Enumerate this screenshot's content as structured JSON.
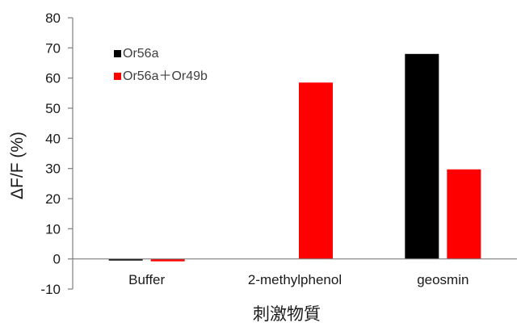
{
  "chart_data": {
    "type": "bar",
    "title": "",
    "xlabel": "刺激物質",
    "ylabel": "ΔF/F (%)",
    "ylim": [
      -10,
      80
    ],
    "yticks": [
      -10,
      0,
      10,
      20,
      30,
      40,
      50,
      60,
      70,
      80
    ],
    "categories": [
      "Buffer",
      "2-methylphenol",
      "geosmin"
    ],
    "series": [
      {
        "name": "Or56a",
        "color": "#000000",
        "values": [
          -0.5,
          0,
          68
        ]
      },
      {
        "name": "Or56a＋Or49b",
        "color": "#ff0000",
        "values": [
          -0.8,
          58.5,
          29.7
        ]
      }
    ],
    "grid": false,
    "legend_position": "top-left"
  }
}
